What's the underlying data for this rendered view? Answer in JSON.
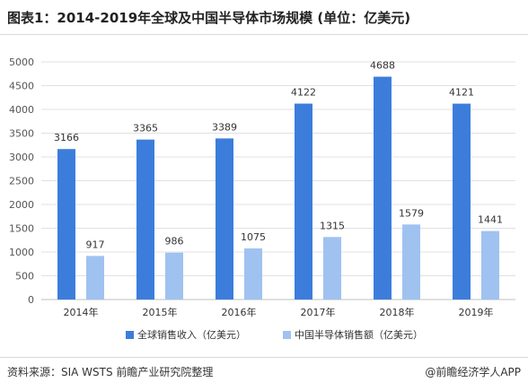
{
  "title": "图表1：2014-2019年全球及中国半导体市场规模 (单位：亿美元)",
  "source": "资料来源：SIA  WSTS  前瞻产业研究院整理",
  "brand": "@前瞻经济学人APP",
  "colors": {
    "global": "#3c7ddc",
    "china": "#9fc2f0",
    "grid": "#e0e0e0",
    "axis": "#bfbfbf"
  },
  "chart_data": {
    "type": "bar",
    "categories": [
      "2014年",
      "2015年",
      "2016年",
      "2017年",
      "2018年",
      "2019年"
    ],
    "series": [
      {
        "name": "全球销售收入（亿美元）",
        "values": [
          3166,
          3365,
          3389,
          4122,
          4688,
          4121
        ]
      },
      {
        "name": "中国半导体销售额（亿美元）",
        "values": [
          917,
          986,
          1075,
          1315,
          1579,
          1441
        ]
      }
    ],
    "ylim": [
      0,
      5000
    ],
    "yticks": [
      0,
      500,
      1000,
      1500,
      2000,
      2500,
      3000,
      3500,
      4000,
      4500,
      5000
    ],
    "grid": true,
    "legend": "bottom",
    "data_labels": true
  }
}
